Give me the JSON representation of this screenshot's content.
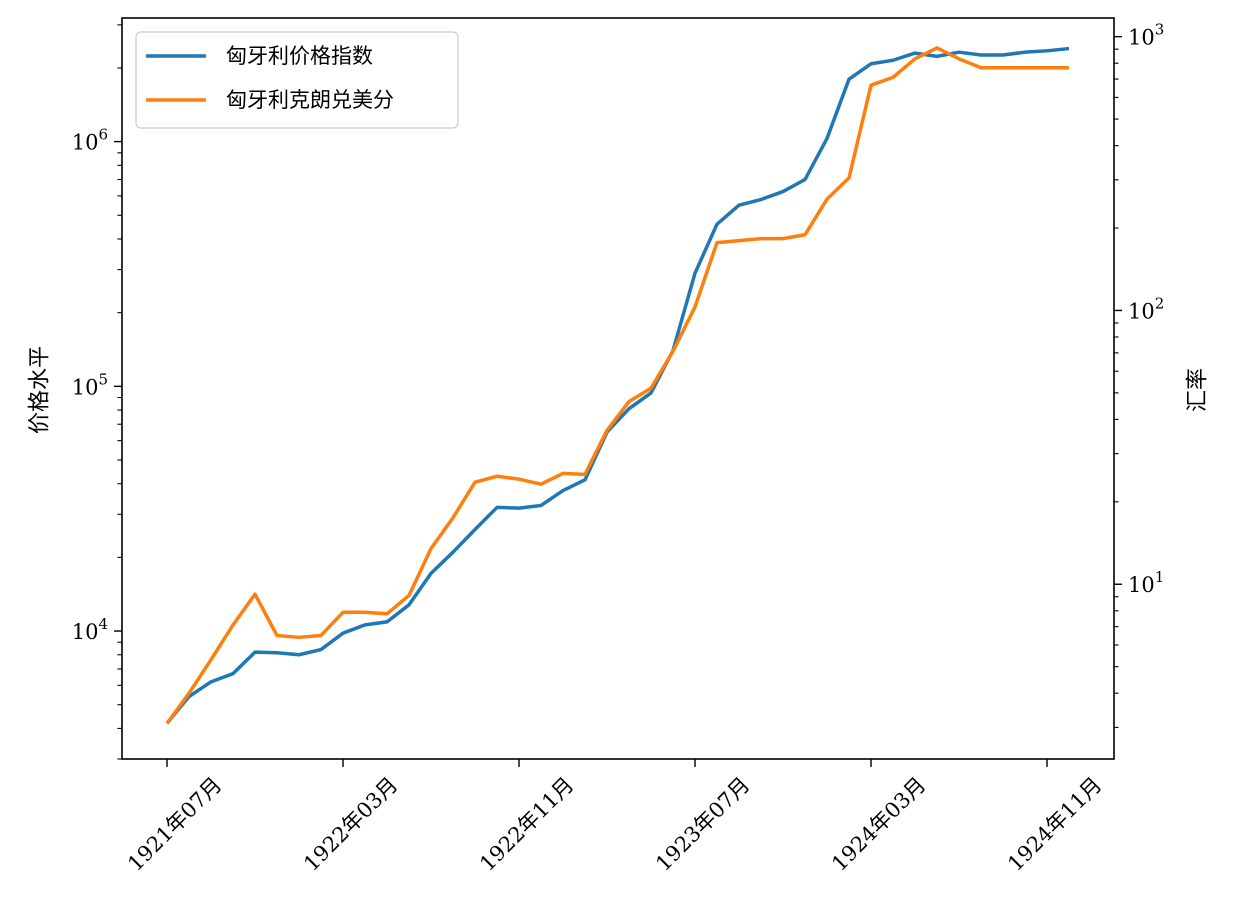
{
  "chart_data": {
    "type": "line",
    "x_axis": {
      "kind": "monthly",
      "start": "1921-07",
      "tick_labels": [
        "1921年07月",
        "1922年03月",
        "1922年11月",
        "1923年07月",
        "1924年03月",
        "1924年11月"
      ],
      "tick_dates": [
        "1921-07",
        "1922-03",
        "1922-11",
        "1923-07",
        "1924-03",
        "1924-11"
      ]
    },
    "left_axis": {
      "label": "价格水平",
      "scale": "log",
      "range": [
        3000,
        3200000
      ],
      "ticks": [
        {
          "value": 10000,
          "base": "10",
          "exp": "4"
        },
        {
          "value": 100000,
          "base": "10",
          "exp": "5"
        },
        {
          "value": 1000000,
          "base": "10",
          "exp": "6"
        }
      ]
    },
    "right_axis": {
      "label": "汇率",
      "scale": "log",
      "range": [
        2.3,
        1170
      ],
      "ticks": [
        {
          "value": 10,
          "base": "10",
          "exp": "1"
        },
        {
          "value": 100,
          "base": "10",
          "exp": "2"
        },
        {
          "value": 1000,
          "base": "10",
          "exp": "3"
        }
      ]
    },
    "legend": {
      "placement": "top-left",
      "entries": [
        "匈牙利价格指数",
        "匈牙利克朗兑美分"
      ]
    },
    "series": [
      {
        "name": "匈牙利价格指数",
        "axis": "left",
        "color": "#1f77b4",
        "dates": [
          "1921-07",
          "1921-08",
          "1921-09",
          "1921-10",
          "1921-11",
          "1921-12",
          "1922-01",
          "1922-02",
          "1922-03",
          "1922-04",
          "1922-05",
          "1922-06",
          "1922-07",
          "1922-08",
          "1922-09",
          "1922-10",
          "1922-11",
          "1922-12",
          "1923-01",
          "1923-02",
          "1923-03",
          "1923-04",
          "1923-05",
          "1923-06",
          "1923-07",
          "1923-08",
          "1923-09",
          "1923-10",
          "1923-11",
          "1923-12",
          "1924-01",
          "1924-02",
          "1924-03",
          "1924-04",
          "1924-05",
          "1924-06",
          "1924-07",
          "1924-08",
          "1924-09",
          "1924-10",
          "1924-11",
          "1924-12"
        ],
        "values": [
          4200,
          5400,
          6200,
          6700,
          8200,
          8150,
          8000,
          8400,
          9800,
          10600,
          10900,
          12800,
          17200,
          21000,
          26000,
          32000,
          31800,
          32600,
          37500,
          41500,
          65000,
          81000,
          94000,
          140000,
          290000,
          460000,
          550000,
          580000,
          625000,
          700000,
          1030000,
          1800000,
          2080000,
          2150000,
          2300000,
          2230000,
          2320000,
          2260000,
          2260000,
          2320000,
          2350000,
          2400000
        ]
      },
      {
        "name": "匈牙利克朗兑美分",
        "axis": "right",
        "color": "#ff7f0e",
        "dates": [
          "1921-07",
          "1921-08",
          "1921-09",
          "1921-10",
          "1921-11",
          "1921-12",
          "1922-01",
          "1922-02",
          "1922-03",
          "1922-04",
          "1922-05",
          "1922-06",
          "1922-07",
          "1922-08",
          "1922-09",
          "1922-10",
          "1922-11",
          "1922-12",
          "1923-01",
          "1923-02",
          "1923-03",
          "1923-04",
          "1923-05",
          "1923-06",
          "1923-07",
          "1923-08",
          "1923-09",
          "1923-10",
          "1923-11",
          "1923-12",
          "1924-01",
          "1924-02",
          "1924-03",
          "1924-04",
          "1924-05",
          "1924-06",
          "1924-07",
          "1924-08",
          "1924-09",
          "1924-10",
          "1924-11",
          "1924-12"
        ],
        "values": [
          3.1,
          4.0,
          5.3,
          7.1,
          9.2,
          6.5,
          6.4,
          6.5,
          7.9,
          7.9,
          7.8,
          9.1,
          13.5,
          17.5,
          23.6,
          24.8,
          24.2,
          23.2,
          25.4,
          25.2,
          36.5,
          46.5,
          52.0,
          71.0,
          103.0,
          177.0,
          180.0,
          183.0,
          183.0,
          189.0,
          255.0,
          305.0,
          665.0,
          710.0,
          830.0,
          910.0,
          830.0,
          770.0,
          770.0,
          770.0,
          770.0,
          770.0
        ]
      }
    ]
  }
}
